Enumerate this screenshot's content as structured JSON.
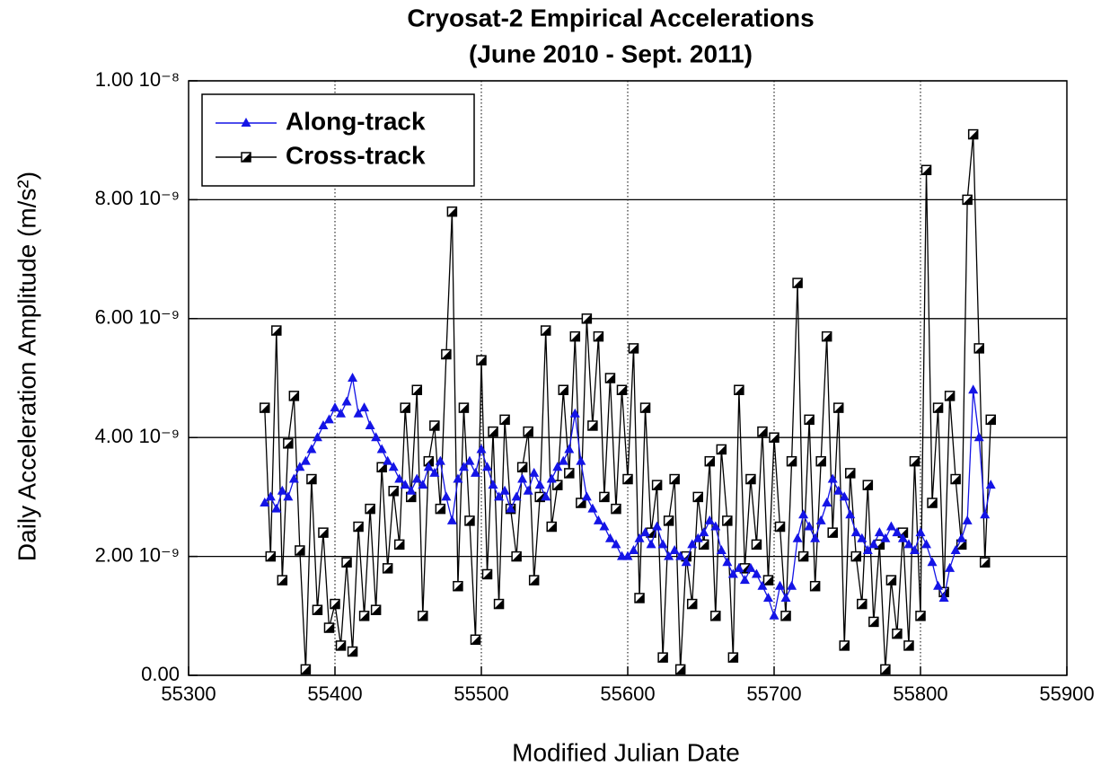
{
  "chart_data": {
    "type": "line",
    "title": "Cryosat-2 Empirical Accelerations",
    "subtitle": "(June 2010 - Sept. 2011)",
    "x_label": "Modified Julian Date",
    "y_label": "Daily Acceleration Amplitude (m/s²)",
    "xlim": [
      55300,
      55900
    ],
    "xticks": [
      55300,
      55400,
      55500,
      55600,
      55700,
      55800,
      55900
    ],
    "ylim": [
      0,
      1e-08
    ],
    "yticks": [
      {
        "value": 0,
        "label": "0.00"
      },
      {
        "value": 2e-09,
        "label": "2.00 10⁻⁹"
      },
      {
        "value": 4e-09,
        "label": "4.00 10⁻⁹"
      },
      {
        "value": 6e-09,
        "label": "6.00 10⁻⁹"
      },
      {
        "value": 8e-09,
        "label": "8.00 10⁻⁹"
      },
      {
        "value": 1e-08,
        "label": "1.00 10⁻⁸"
      }
    ],
    "grid": true,
    "legend": "upper left",
    "x": [
      55352,
      55356,
      55360,
      55364,
      55368,
      55372,
      55376,
      55380,
      55384,
      55388,
      55392,
      55396,
      55400,
      55404,
      55408,
      55412,
      55416,
      55420,
      55424,
      55428,
      55432,
      55436,
      55440,
      55444,
      55448,
      55452,
      55456,
      55460,
      55464,
      55468,
      55472,
      55476,
      55480,
      55484,
      55488,
      55492,
      55496,
      55500,
      55504,
      55508,
      55512,
      55516,
      55520,
      55524,
      55528,
      55532,
      55536,
      55540,
      55544,
      55548,
      55552,
      55556,
      55560,
      55564,
      55568,
      55572,
      55576,
      55580,
      55584,
      55588,
      55592,
      55596,
      55600,
      55604,
      55608,
      55612,
      55616,
      55620,
      55624,
      55628,
      55632,
      55636,
      55640,
      55644,
      55648,
      55652,
      55656,
      55660,
      55664,
      55668,
      55672,
      55676,
      55680,
      55684,
      55688,
      55692,
      55696,
      55700,
      55704,
      55708,
      55712,
      55716,
      55720,
      55724,
      55728,
      55732,
      55736,
      55740,
      55744,
      55748,
      55752,
      55756,
      55760,
      55764,
      55768,
      55772,
      55776,
      55780,
      55784,
      55788,
      55792,
      55796,
      55800,
      55804,
      55808,
      55812,
      55816,
      55820,
      55824,
      55828,
      55832,
      55836,
      55840,
      55844,
      55848
    ],
    "series": [
      {
        "name": "Along-track",
        "color": "#1414e6",
        "marker": "triangle",
        "values": [
          2.9e-09,
          3e-09,
          2.8e-09,
          3.1e-09,
          3e-09,
          3.3e-09,
          3.5e-09,
          3.6e-09,
          3.8e-09,
          4e-09,
          4.2e-09,
          4.3e-09,
          4.5e-09,
          4.4e-09,
          4.6e-09,
          5e-09,
          4.4e-09,
          4.5e-09,
          4.2e-09,
          4e-09,
          3.8e-09,
          3.6e-09,
          3.5e-09,
          3.3e-09,
          3.2e-09,
          3.1e-09,
          3.3e-09,
          3.2e-09,
          3.5e-09,
          3.4e-09,
          3.6e-09,
          3e-09,
          2.6e-09,
          3.3e-09,
          3.5e-09,
          3.6e-09,
          3.4e-09,
          3.8e-09,
          3.5e-09,
          3.2e-09,
          3e-09,
          3.1e-09,
          2.8e-09,
          3e-09,
          3.3e-09,
          3.1e-09,
          3.4e-09,
          3.2e-09,
          3e-09,
          3.3e-09,
          3.5e-09,
          3.6e-09,
          3.8e-09,
          4.4e-09,
          3.6e-09,
          3e-09,
          2.8e-09,
          2.6e-09,
          2.5e-09,
          2.3e-09,
          2.2e-09,
          2e-09,
          2e-09,
          2.1e-09,
          2.3e-09,
          2.4e-09,
          2.2e-09,
          2.5e-09,
          2.2e-09,
          2e-09,
          2.1e-09,
          2e-09,
          1.9e-09,
          2.2e-09,
          2.3e-09,
          2.4e-09,
          2.6e-09,
          2.5e-09,
          2.1e-09,
          1.9e-09,
          1.7e-09,
          1.8e-09,
          1.6e-09,
          1.8e-09,
          1.7e-09,
          1.5e-09,
          1.3e-09,
          1e-09,
          1.5e-09,
          1.3e-09,
          1.5e-09,
          2.3e-09,
          2.7e-09,
          2.5e-09,
          2.3e-09,
          2.6e-09,
          2.9e-09,
          3.3e-09,
          3.1e-09,
          3e-09,
          2.7e-09,
          2.4e-09,
          2.3e-09,
          2.1e-09,
          2.2e-09,
          2.4e-09,
          2.3e-09,
          2.5e-09,
          2.4e-09,
          2.3e-09,
          2.2e-09,
          2.1e-09,
          2.4e-09,
          2.2e-09,
          1.9e-09,
          1.5e-09,
          1.3e-09,
          1.8e-09,
          2.1e-09,
          2.3e-09,
          2.6e-09,
          4.8e-09,
          4e-09,
          2.7e-09,
          3.2e-09
        ]
      },
      {
        "name": "Cross-track",
        "color": "#000000",
        "marker": "square",
        "values": [
          4.5e-09,
          2e-09,
          5.8e-09,
          1.6e-09,
          3.9e-09,
          4.7e-09,
          2.1e-09,
          1e-10,
          3.3e-09,
          1.1e-09,
          2.4e-09,
          8e-10,
          1.2e-09,
          5e-10,
          1.9e-09,
          4e-10,
          2.5e-09,
          1e-09,
          2.8e-09,
          1.1e-09,
          3.5e-09,
          1.8e-09,
          3.1e-09,
          2.2e-09,
          4.5e-09,
          3e-09,
          4.8e-09,
          1e-09,
          3.6e-09,
          4.2e-09,
          2.8e-09,
          5.4e-09,
          7.8e-09,
          1.5e-09,
          4.5e-09,
          2.6e-09,
          6e-10,
          5.3e-09,
          1.7e-09,
          4.1e-09,
          1.2e-09,
          4.3e-09,
          2.8e-09,
          2e-09,
          3.5e-09,
          4.1e-09,
          1.6e-09,
          3e-09,
          5.8e-09,
          2.5e-09,
          3.2e-09,
          4.8e-09,
          3.4e-09,
          5.7e-09,
          2.9e-09,
          6e-09,
          4.2e-09,
          5.7e-09,
          3e-09,
          5e-09,
          2.8e-09,
          4.8e-09,
          3.3e-09,
          5.5e-09,
          1.3e-09,
          4.5e-09,
          2.4e-09,
          3.2e-09,
          3e-10,
          2.6e-09,
          3.3e-09,
          1e-10,
          2e-09,
          1.2e-09,
          3e-09,
          2.2e-09,
          3.6e-09,
          1e-09,
          3.8e-09,
          2.6e-09,
          3e-10,
          4.8e-09,
          1.8e-09,
          3.3e-09,
          2.2e-09,
          4.1e-09,
          1.6e-09,
          4e-09,
          2.5e-09,
          1e-09,
          3.6e-09,
          6.6e-09,
          2e-09,
          4.3e-09,
          1.5e-09,
          3.6e-09,
          5.7e-09,
          2.4e-09,
          4.5e-09,
          5e-10,
          3.4e-09,
          2e-09,
          1.2e-09,
          3.2e-09,
          9e-10,
          2.2e-09,
          1e-10,
          1.6e-09,
          7e-10,
          2.4e-09,
          5e-10,
          3.6e-09,
          1e-09,
          8.5e-09,
          2.9e-09,
          4.5e-09,
          1.4e-09,
          4.7e-09,
          3.3e-09,
          2.2e-09,
          8e-09,
          9.1e-09,
          5.5e-09,
          1.9e-09,
          4.3e-09
        ]
      }
    ]
  }
}
